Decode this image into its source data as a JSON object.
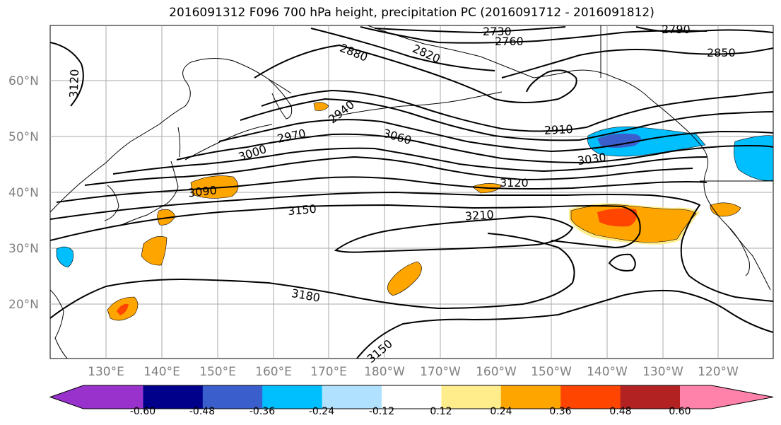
{
  "title": "2016091312 F096 700 hPa height, precipitation PC (2016091712 - 2016091812)",
  "lat_labels": [
    "60°N",
    "50°N",
    "40°N",
    "30°N",
    "20°N"
  ],
  "lon_labels": [
    "130°E",
    "140°E",
    "150°E",
    "160°E",
    "170°E",
    "180°W",
    "170°W",
    "160°W",
    "150°W",
    "140°W",
    "130°W",
    "120°W"
  ],
  "contour_labels": [
    "2730",
    "2760",
    "2820",
    "2790",
    "2850",
    "2880",
    "2940",
    "2910",
    "2970",
    "3000",
    "3060",
    "3030",
    "3090",
    "3120",
    "3120",
    "3150",
    "3210",
    "3180",
    "3150"
  ],
  "colorbar": {
    "ticks": [
      "-0.60",
      "-0.48",
      "-0.36",
      "-0.24",
      "-0.12",
      "0.12",
      "0.24",
      "0.36",
      "0.48",
      "0.60"
    ],
    "colors": [
      "#9932cc",
      "#00008b",
      "#3a5fcd",
      "#00bfff",
      "#b0e2ff",
      "#ffffff",
      "#ffec8b",
      "#ffa500",
      "#ff4500",
      "#b22222",
      "#ff82ab"
    ]
  }
}
